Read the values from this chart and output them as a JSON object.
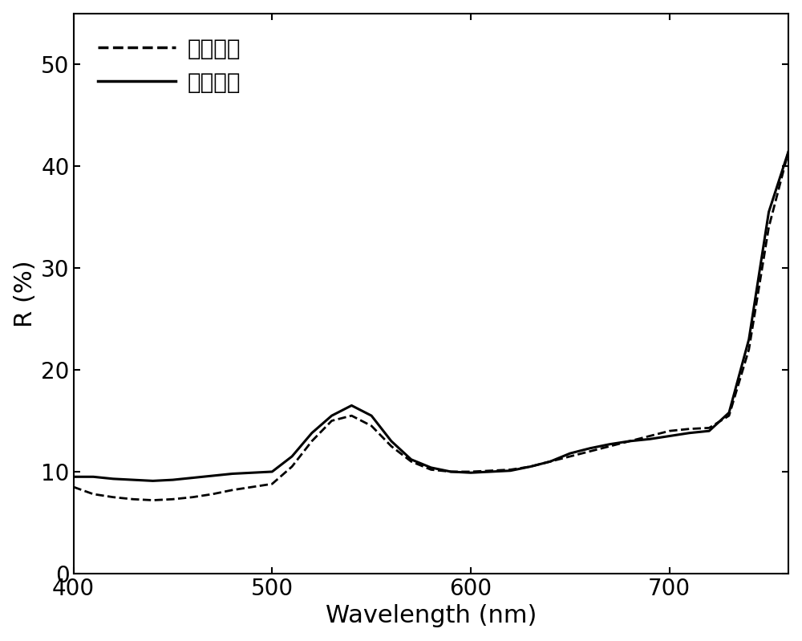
{
  "title": "",
  "xlabel": "Wavelength (nm)",
  "ylabel": "R (%)",
  "xlim": [
    400,
    760
  ],
  "ylim": [
    0,
    55
  ],
  "xticks": [
    400,
    500,
    600,
    700
  ],
  "yticks": [
    0,
    10,
    20,
    30,
    40,
    50
  ],
  "background_color": "#ffffff",
  "line_color": "#000000",
  "legend_label_dashed": "背景颜色",
  "legend_label_solid": "涂料颜色",
  "bg_x": [
    400,
    410,
    420,
    430,
    440,
    450,
    460,
    470,
    480,
    490,
    500,
    510,
    520,
    530,
    540,
    550,
    560,
    570,
    580,
    590,
    600,
    610,
    620,
    630,
    640,
    650,
    660,
    670,
    680,
    690,
    700,
    710,
    720,
    730,
    740,
    750,
    760
  ],
  "bg_y": [
    8.5,
    7.8,
    7.5,
    7.3,
    7.2,
    7.3,
    7.5,
    7.8,
    8.2,
    8.5,
    8.8,
    10.5,
    13.0,
    15.0,
    15.5,
    14.5,
    12.5,
    11.0,
    10.2,
    10.0,
    10.0,
    10.1,
    10.2,
    10.5,
    11.0,
    11.5,
    12.0,
    12.5,
    13.0,
    13.5,
    14.0,
    14.2,
    14.3,
    15.5,
    22.0,
    34.0,
    41.5
  ],
  "paint_x": [
    400,
    410,
    420,
    430,
    440,
    450,
    460,
    470,
    480,
    490,
    500,
    510,
    520,
    530,
    540,
    550,
    560,
    570,
    580,
    590,
    600,
    610,
    620,
    630,
    640,
    650,
    660,
    670,
    680,
    690,
    700,
    710,
    720,
    730,
    740,
    750,
    760
  ],
  "paint_y": [
    9.5,
    9.5,
    9.3,
    9.2,
    9.1,
    9.2,
    9.4,
    9.6,
    9.8,
    9.9,
    10.0,
    11.5,
    13.8,
    15.5,
    16.5,
    15.5,
    13.0,
    11.2,
    10.4,
    10.0,
    9.9,
    10.0,
    10.1,
    10.5,
    11.0,
    11.8,
    12.3,
    12.7,
    13.0,
    13.2,
    13.5,
    13.8,
    14.0,
    15.8,
    23.0,
    35.5,
    41.5
  ],
  "label_fontsize": 22,
  "tick_fontsize": 20,
  "legend_fontsize": 20,
  "linewidth_solid": 2.2,
  "linewidth_dashed": 2.0
}
